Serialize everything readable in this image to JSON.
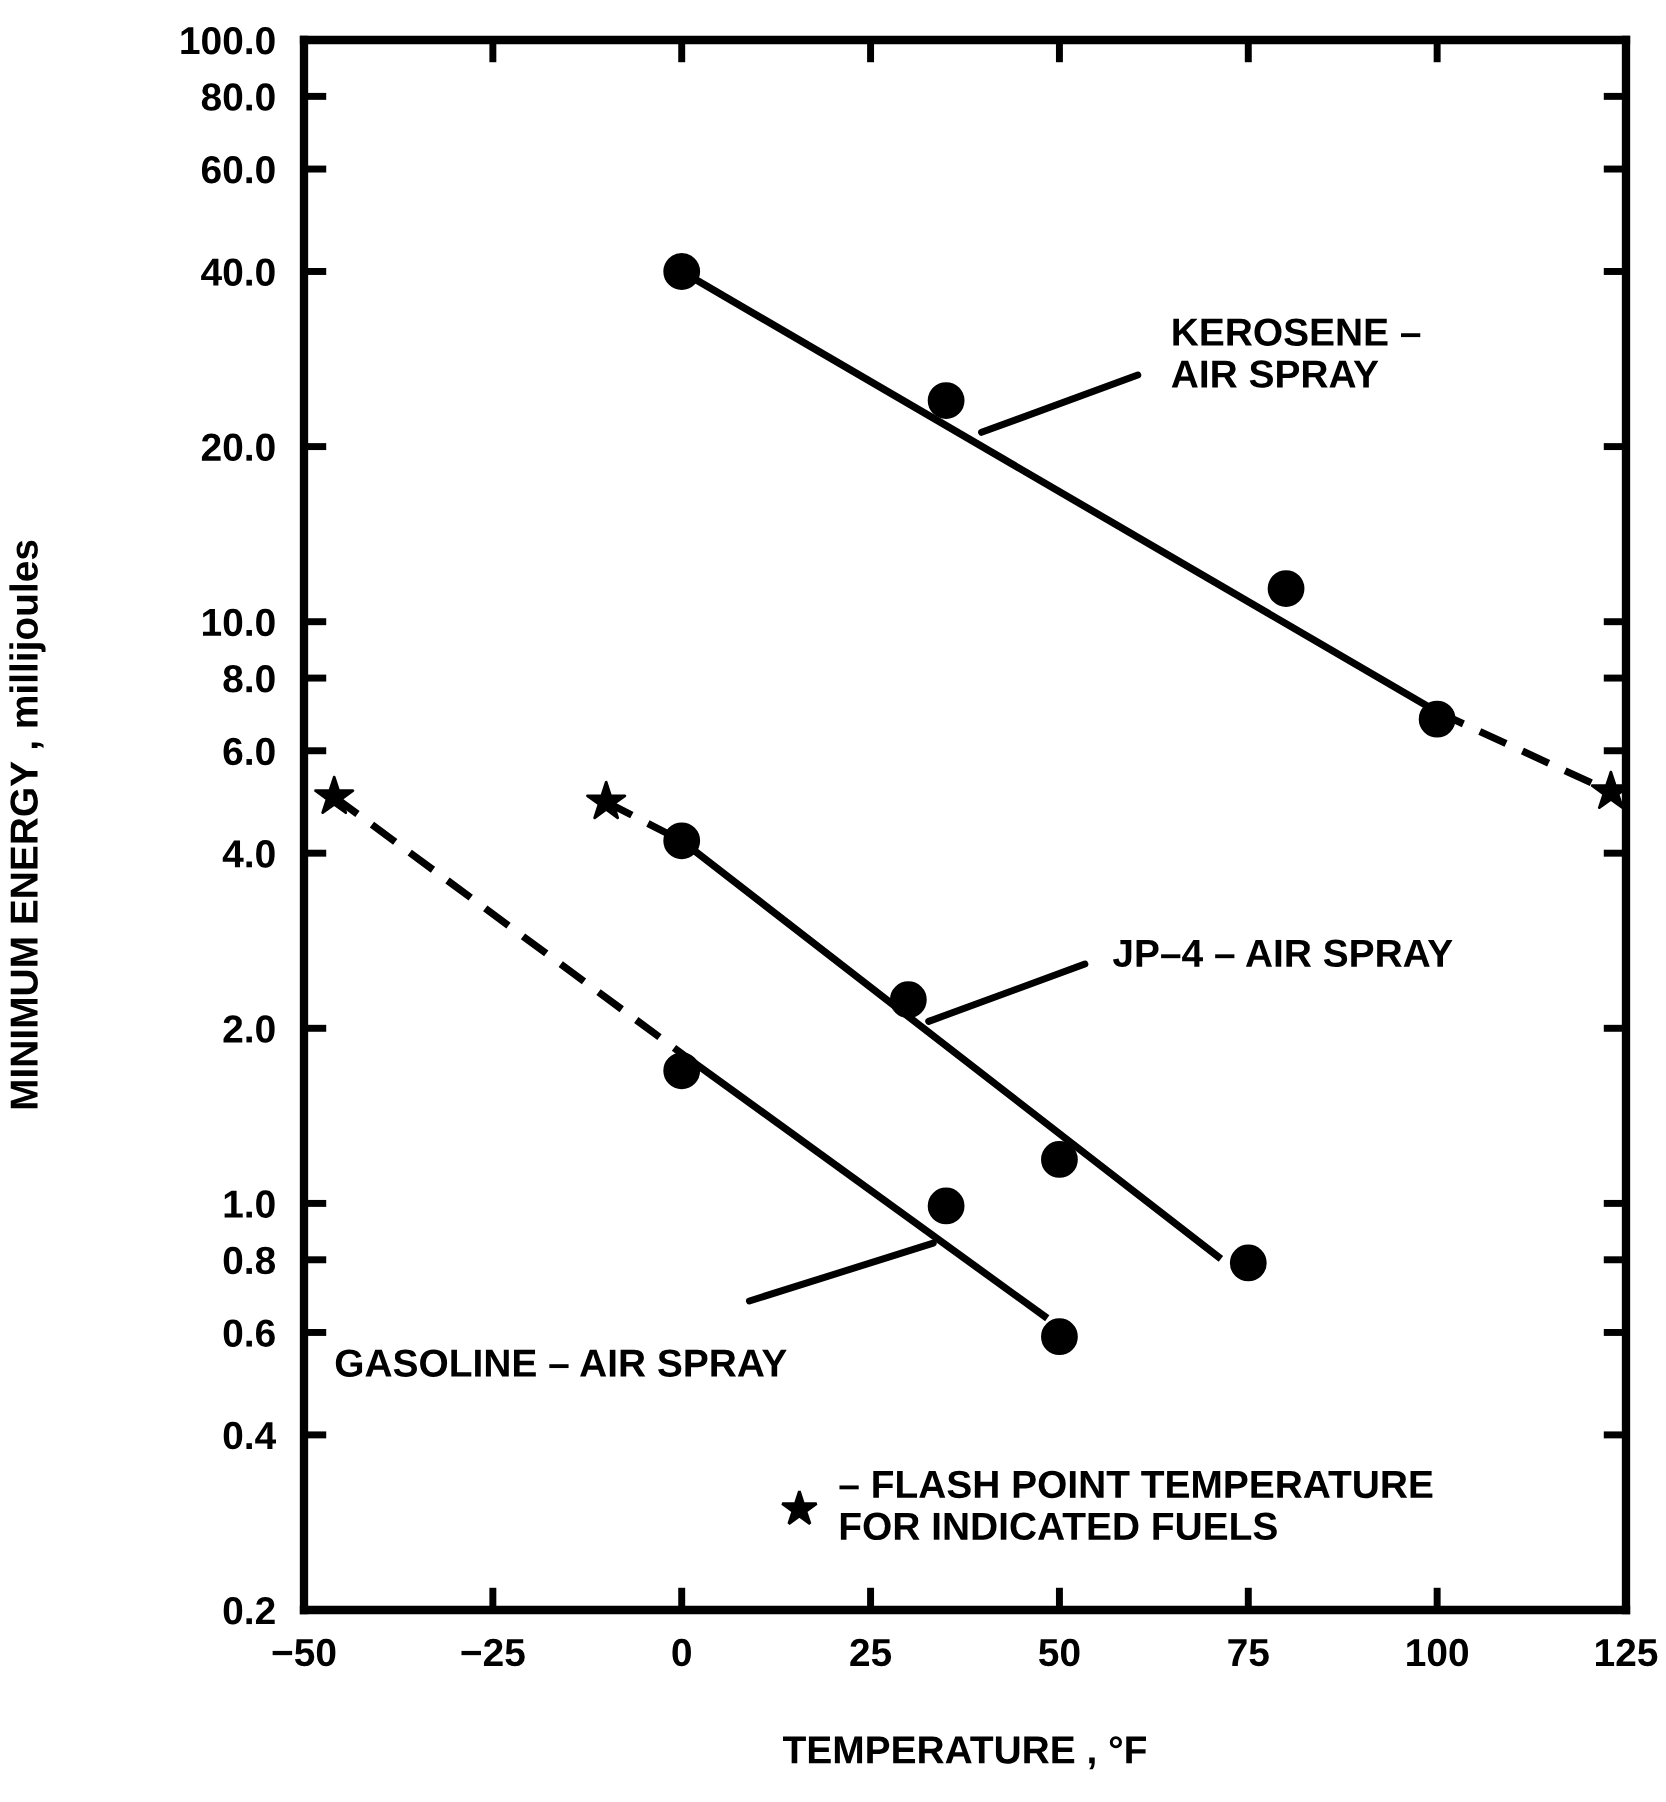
{
  "chart_data": {
    "type": "scatter",
    "xlabel": "TEMPERATURE , °F",
    "ylabel": "MINIMUM ENERGY , millijoules",
    "log": "y",
    "grid": false,
    "legend": "bottom",
    "xlim": [
      -50,
      125
    ],
    "xticks": [
      {
        "value": -50,
        "label": "−50"
      },
      {
        "value": -25,
        "label": "−25"
      },
      0,
      25,
      50,
      75,
      100,
      125
    ],
    "ylim": [
      0.2,
      100
    ],
    "yticks": [
      {
        "value": 0.2,
        "label": "0.2"
      },
      {
        "value": 0.4,
        "label": "0.4"
      },
      {
        "value": 0.6,
        "label": "0.6"
      },
      {
        "value": 0.8,
        "label": "0.8"
      },
      {
        "value": 1,
        "label": "1.0"
      },
      {
        "value": 2,
        "label": "2.0"
      },
      {
        "value": 4,
        "label": "4.0"
      },
      {
        "value": 6,
        "label": "6.0"
      },
      {
        "value": 8,
        "label": "8.0"
      },
      {
        "value": 10,
        "label": "10.0"
      },
      {
        "value": 20,
        "label": "20.0"
      },
      {
        "value": 40,
        "label": "40.0"
      },
      {
        "value": 60,
        "label": "60.0"
      },
      {
        "value": 80,
        "label": "80.0"
      },
      {
        "value": 100,
        "label": "100.0"
      }
    ],
    "series": [
      {
        "type": "line",
        "color": "#000000",
        "marker": "none",
        "line_style": "solid",
        "x": [
          0,
          100
        ],
        "values": [
          40,
          7.0
        ]
      },
      {
        "type": "line",
        "color": "#000000",
        "marker": "none",
        "line_style": "dashed",
        "x": [
          100,
          123
        ],
        "values": [
          7.0,
          5.1
        ]
      },
      {
        "type": "line",
        "color": "#000000",
        "marker": "none",
        "line_style": "dashed",
        "x": [
          -10,
          0
        ],
        "values": [
          4.9,
          4.2
        ]
      },
      {
        "type": "line",
        "color": "#000000",
        "marker": "none",
        "line_style": "solid",
        "x": [
          0,
          71
        ],
        "values": [
          4.2,
          0.81
        ]
      },
      {
        "type": "line",
        "color": "#000000",
        "marker": "none",
        "line_style": "dashed",
        "x": [
          -46,
          1
        ],
        "values": [
          5.0,
          1.77
        ]
      },
      {
        "type": "line",
        "color": "#000000",
        "marker": "none",
        "line_style": "solid",
        "x": [
          1,
          48
        ],
        "values": [
          1.77,
          0.64
        ]
      },
      {
        "color": "#000000",
        "marker": "circle",
        "x": [
          0,
          35,
          80,
          100
        ],
        "values": [
          40,
          24,
          11.4,
          6.8
        ]
      },
      {
        "color": "#000000",
        "marker": "circle",
        "x": [
          0,
          30,
          50,
          75
        ],
        "values": [
          4.2,
          2.24,
          1.19,
          0.79
        ]
      },
      {
        "color": "#000000",
        "marker": "circle",
        "x": [
          0,
          35,
          50
        ],
        "values": [
          1.69,
          0.99,
          0.59
        ]
      },
      {
        "color": "#000000",
        "marker": "star",
        "name": "– FLASH POINT TEMPERATURE\nFOR INDICATED FUELS",
        "x": [
          -46,
          -10,
          123
        ],
        "values": [
          5.0,
          4.9,
          5.1
        ]
      }
    ],
    "annotations": [
      {
        "text": "KEROSENE –\nAIR SPRAY",
        "x": 39,
        "y": 21
      },
      {
        "text": "JP–4 – AIR SPRAY",
        "x": 32,
        "y": 2.04
      },
      {
        "text": "GASOLINE – AIR SPRAY",
        "x": 34,
        "y": 0.86
      }
    ]
  }
}
